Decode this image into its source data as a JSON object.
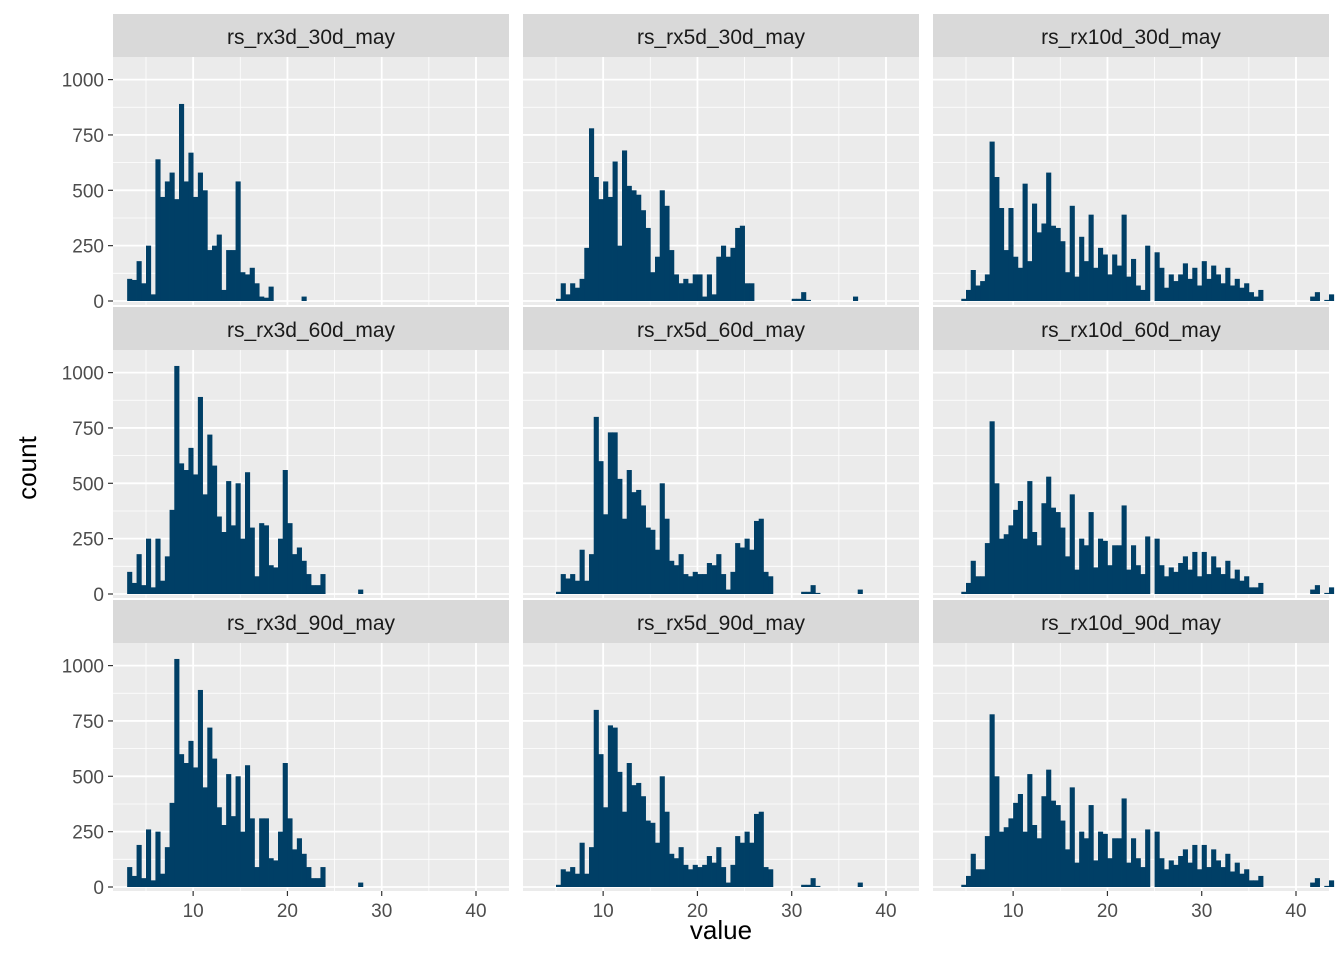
{
  "chart_data": {
    "type": "bar",
    "chart_kind": "histogram facet grid",
    "xlabel": "value",
    "ylabel": "count",
    "xlim": [
      1.5,
      43.5
    ],
    "ylim": [
      0,
      1080
    ],
    "x_ticks": [
      10,
      20,
      30,
      40
    ],
    "y_ticks": [
      0,
      250,
      500,
      750,
      1000
    ],
    "bin_width": 0.5,
    "grid": true,
    "fill_color": "#003f66",
    "panel_background": "#ebebeb",
    "strip_background": "#d9d9d9",
    "grid_color": "#ffffff",
    "facet_rows": 3,
    "facet_cols": 3,
    "panels": [
      {
        "title": "rs_rx3d_30d_may",
        "x_start": 3.0,
        "values": [
          100,
          95,
          180,
          80,
          250,
          30,
          640,
          470,
          540,
          580,
          460,
          890,
          540,
          670,
          470,
          580,
          500,
          230,
          250,
          300,
          50,
          230,
          230,
          540,
          130,
          120,
          150,
          80,
          20,
          15,
          65,
          0,
          0,
          0,
          0,
          0,
          0,
          20
        ]
      },
      {
        "title": "rs_rx5d_30d_may",
        "x_start": 5.0,
        "values": [
          10,
          80,
          30,
          80,
          60,
          100,
          240,
          780,
          560,
          460,
          540,
          470,
          630,
          250,
          680,
          520,
          500,
          480,
          410,
          330,
          130,
          200,
          500,
          430,
          230,
          120,
          80,
          100,
          80,
          120,
          120,
          20,
          120,
          30,
          200,
          250,
          200,
          240,
          330,
          340,
          80,
          80,
          0,
          0,
          0,
          0,
          0,
          0,
          0,
          0,
          10,
          10,
          40,
          5,
          0,
          0,
          0,
          0,
          0,
          0,
          0,
          0,
          0,
          20
        ]
      },
      {
        "title": "rs_rx10d_30d_may",
        "x_start": 4.5,
        "values": [
          10,
          50,
          140,
          70,
          90,
          120,
          720,
          560,
          420,
          230,
          420,
          200,
          150,
          530,
          180,
          440,
          310,
          350,
          580,
          340,
          330,
          270,
          130,
          430,
          110,
          290,
          180,
          390,
          150,
          240,
          210,
          120,
          210,
          160,
          390,
          110,
          190,
          70,
          50,
          250,
          0,
          220,
          150,
          60,
          120,
          90,
          120,
          170,
          100,
          150,
          70,
          180,
          100,
          160,
          120,
          80,
          150,
          70,
          100,
          60,
          80,
          40,
          20,
          50,
          0,
          0,
          0,
          0,
          0,
          0,
          0,
          0,
          0,
          0,
          20,
          40,
          0,
          5,
          30,
          0,
          0,
          0,
          0,
          0,
          0,
          20,
          0,
          0,
          0,
          0,
          0,
          0,
          0,
          0,
          20
        ]
      },
      {
        "title": "rs_rx3d_60d_may",
        "x_start": 3.0,
        "values": [
          100,
          50,
          180,
          40,
          250,
          30,
          250,
          60,
          170,
          380,
          1030,
          590,
          560,
          660,
          540,
          890,
          450,
          720,
          580,
          350,
          280,
          510,
          310,
          500,
          250,
          550,
          300,
          80,
          320,
          310,
          130,
          120,
          250,
          560,
          320,
          180,
          210,
          150,
          90,
          40,
          40,
          90,
          0,
          0,
          0,
          0,
          0,
          0,
          0,
          20
        ]
      },
      {
        "title": "rs_rx5d_60d_may",
        "x_start": 5.0,
        "values": [
          10,
          90,
          70,
          90,
          60,
          200,
          60,
          180,
          800,
          600,
          360,
          730,
          730,
          520,
          340,
          560,
          460,
          470,
          400,
          300,
          290,
          200,
          500,
          340,
          150,
          130,
          180,
          90,
          80,
          100,
          90,
          90,
          140,
          130,
          180,
          90,
          20,
          100,
          230,
          210,
          250,
          200,
          330,
          340,
          100,
          80,
          0,
          0,
          0,
          0,
          0,
          0,
          10,
          10,
          40,
          5,
          0,
          0,
          0,
          0,
          0,
          0,
          0,
          0,
          20
        ]
      },
      {
        "title": "rs_rx10d_60d_may",
        "x_start": 4.5,
        "values": [
          10,
          50,
          150,
          80,
          80,
          230,
          780,
          500,
          250,
          270,
          310,
          380,
          420,
          250,
          510,
          280,
          220,
          410,
          530,
          390,
          370,
          300,
          170,
          450,
          110,
          250,
          220,
          370,
          120,
          250,
          240,
          130,
          220,
          220,
          400,
          110,
          220,
          130,
          90,
          260,
          0,
          250,
          130,
          80,
          120,
          100,
          140,
          170,
          110,
          190,
          80,
          190,
          90,
          170,
          120,
          90,
          150,
          70,
          110,
          60,
          80,
          30,
          30,
          50,
          0,
          0,
          0,
          0,
          0,
          0,
          0,
          0,
          0,
          0,
          20,
          40,
          0,
          5,
          30,
          0,
          0,
          0,
          0,
          0,
          0,
          20,
          0,
          0,
          0,
          0,
          0,
          0,
          0,
          0,
          20
        ]
      },
      {
        "title": "rs_rx3d_90d_may",
        "x_start": 3.0,
        "values": [
          90,
          50,
          190,
          40,
          260,
          30,
          250,
          60,
          180,
          380,
          1030,
          600,
          560,
          660,
          540,
          890,
          450,
          720,
          580,
          360,
          280,
          510,
          320,
          500,
          250,
          550,
          310,
          90,
          310,
          310,
          130,
          120,
          250,
          560,
          310,
          170,
          220,
          150,
          90,
          40,
          40,
          90,
          0,
          0,
          0,
          0,
          0,
          0,
          0,
          20
        ]
      },
      {
        "title": "rs_rx5d_90d_may",
        "x_start": 5.0,
        "values": [
          10,
          80,
          70,
          90,
          60,
          200,
          60,
          180,
          800,
          600,
          360,
          730,
          720,
          520,
          340,
          560,
          460,
          470,
          410,
          300,
          290,
          200,
          500,
          340,
          150,
          130,
          180,
          100,
          80,
          100,
          90,
          100,
          140,
          110,
          180,
          90,
          20,
          100,
          230,
          200,
          250,
          200,
          330,
          340,
          90,
          80,
          0,
          0,
          0,
          0,
          0,
          0,
          10,
          10,
          40,
          5,
          0,
          0,
          0,
          0,
          0,
          0,
          0,
          0,
          20
        ]
      },
      {
        "title": "rs_rx10d_90d_may",
        "x_start": 4.5,
        "values": [
          10,
          50,
          150,
          80,
          80,
          230,
          780,
          500,
          250,
          270,
          310,
          380,
          420,
          250,
          510,
          280,
          220,
          410,
          530,
          390,
          370,
          300,
          170,
          450,
          110,
          250,
          220,
          370,
          120,
          250,
          240,
          130,
          220,
          220,
          400,
          110,
          220,
          130,
          90,
          260,
          0,
          250,
          130,
          80,
          120,
          100,
          140,
          170,
          110,
          190,
          80,
          190,
          90,
          170,
          120,
          90,
          150,
          70,
          110,
          60,
          80,
          30,
          30,
          50,
          0,
          0,
          0,
          0,
          0,
          0,
          0,
          0,
          0,
          0,
          20,
          40,
          0,
          5,
          30,
          0,
          0,
          0,
          0,
          0,
          0,
          20,
          0,
          0,
          0,
          0,
          0,
          0,
          0,
          0,
          20
        ]
      }
    ]
  }
}
